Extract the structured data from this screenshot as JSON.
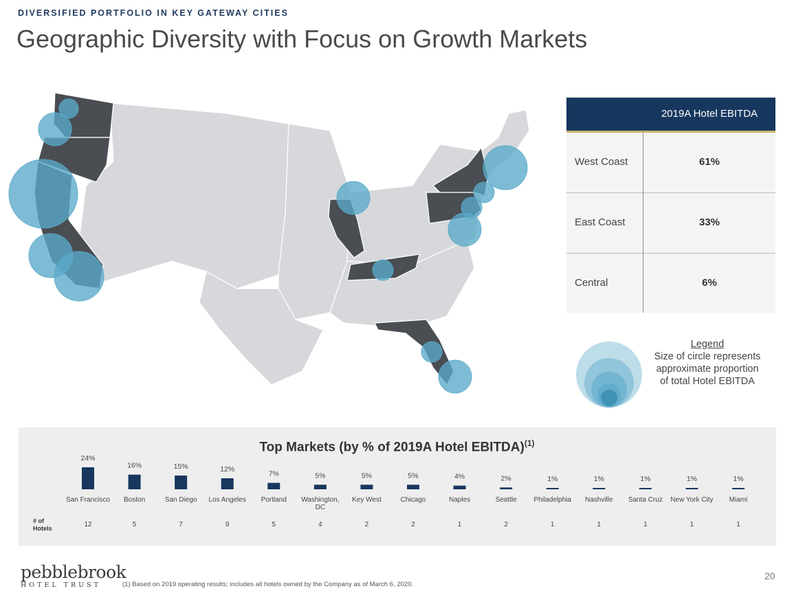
{
  "header": {
    "kicker": "DIVERSIFIED PORTFOLIO IN KEY GATEWAY CITIES",
    "title": "Geographic Diversity with Focus on Growth Markets"
  },
  "colors": {
    "navy": "#17375e",
    "gold": "#c8b26e",
    "highlight_state": "#4a4d52",
    "base_state": "#d6d8db",
    "bubble": "#5aa9c9"
  },
  "map": {
    "highlighted_states": [
      "Washington",
      "Oregon",
      "California",
      "Illinois",
      "Tennessee",
      "Florida",
      "New York",
      "Pennsylvania"
    ]
  },
  "ebitda_table": {
    "header": "2019A Hotel EBITDA",
    "rows": [
      {
        "region": "West Coast",
        "value": "61%"
      },
      {
        "region": "East Coast",
        "value": "33%"
      },
      {
        "region": "Central",
        "value": "6%"
      }
    ]
  },
  "legend": {
    "title": "Legend",
    "text": "Size of circle represents approximate proportion of total Hotel EBITDA"
  },
  "chart_title": "Top Markets (by % of 2019A Hotel EBITDA)",
  "chart_title_sup": "(1)",
  "hotels_label": [
    "# of",
    "Hotels"
  ],
  "chart_data": {
    "type": "bar",
    "title": "Top Markets (by % of 2019A Hotel EBITDA)",
    "categories": [
      "San Francisco",
      "Boston",
      "San Diego",
      "Los Angeles",
      "Portland",
      "Washington, DC",
      "Key West",
      "Chicago",
      "Naples",
      "Seattle",
      "Philadelphia",
      "Nashville",
      "Santa Cruz",
      "New York City",
      "Miami"
    ],
    "values": [
      24,
      16,
      15,
      12,
      7,
      5,
      5,
      5,
      4,
      2,
      1,
      1,
      1,
      1,
      1
    ],
    "value_labels": [
      "24%",
      "16%",
      "15%",
      "12%",
      "7%",
      "5%",
      "5%",
      "5%",
      "4%",
      "2%",
      "1%",
      "1%",
      "1%",
      "1%",
      "1%"
    ],
    "hotels": [
      "12",
      "5",
      "7",
      "9",
      "5",
      "4",
      "2",
      "2",
      "1",
      "2",
      "1",
      "1",
      "1",
      "1",
      "1"
    ],
    "ylim": [
      0,
      24
    ],
    "grid": false
  },
  "footnote": "(1) Based on 2019 operating results; includes all hotels owned by the Company as of March 6, 2020.",
  "logo": {
    "main": "pebblebrook",
    "sub": "HOTEL TRUST"
  },
  "page_number": "20"
}
